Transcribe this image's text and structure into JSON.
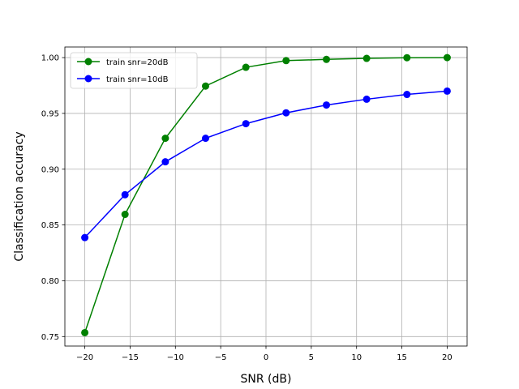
{
  "chart_data": {
    "type": "line",
    "title": "",
    "xlabel": "SNR (dB)",
    "ylabel": "Classification accuracy",
    "xlim": [
      -22.2,
      22.2
    ],
    "ylim": [
      0.7415,
      1.0095
    ],
    "grid": true,
    "legend_position": "top-left",
    "x": [
      -20,
      -15.56,
      -11.11,
      -6.67,
      -2.22,
      2.22,
      6.67,
      11.11,
      15.56,
      20
    ],
    "x_ticks": [
      -20,
      -15,
      -10,
      -5,
      0,
      5,
      10,
      15,
      20
    ],
    "x_tick_labels": [
      "−20",
      "−15",
      "−10",
      "−5",
      "0",
      "5",
      "10",
      "15",
      "20"
    ],
    "y_ticks": [
      0.75,
      0.8,
      0.85,
      0.9,
      0.95,
      1.0
    ],
    "y_tick_labels": [
      "0.75",
      "0.80",
      "0.85",
      "0.90",
      "0.95",
      "1.00"
    ],
    "series": [
      {
        "name": "train snr=20dB",
        "color": "#008000",
        "marker": "circle",
        "values": [
          0.7535,
          0.8595,
          0.9277,
          0.9745,
          0.9913,
          0.9973,
          0.9984,
          0.9993,
          0.9999,
          1.0
        ]
      },
      {
        "name": "train snr=10dB",
        "color": "#0000ff",
        "marker": "circle",
        "values": [
          0.8387,
          0.8771,
          0.9066,
          0.9277,
          0.9408,
          0.9505,
          0.9575,
          0.9627,
          0.967,
          0.97
        ]
      }
    ]
  }
}
